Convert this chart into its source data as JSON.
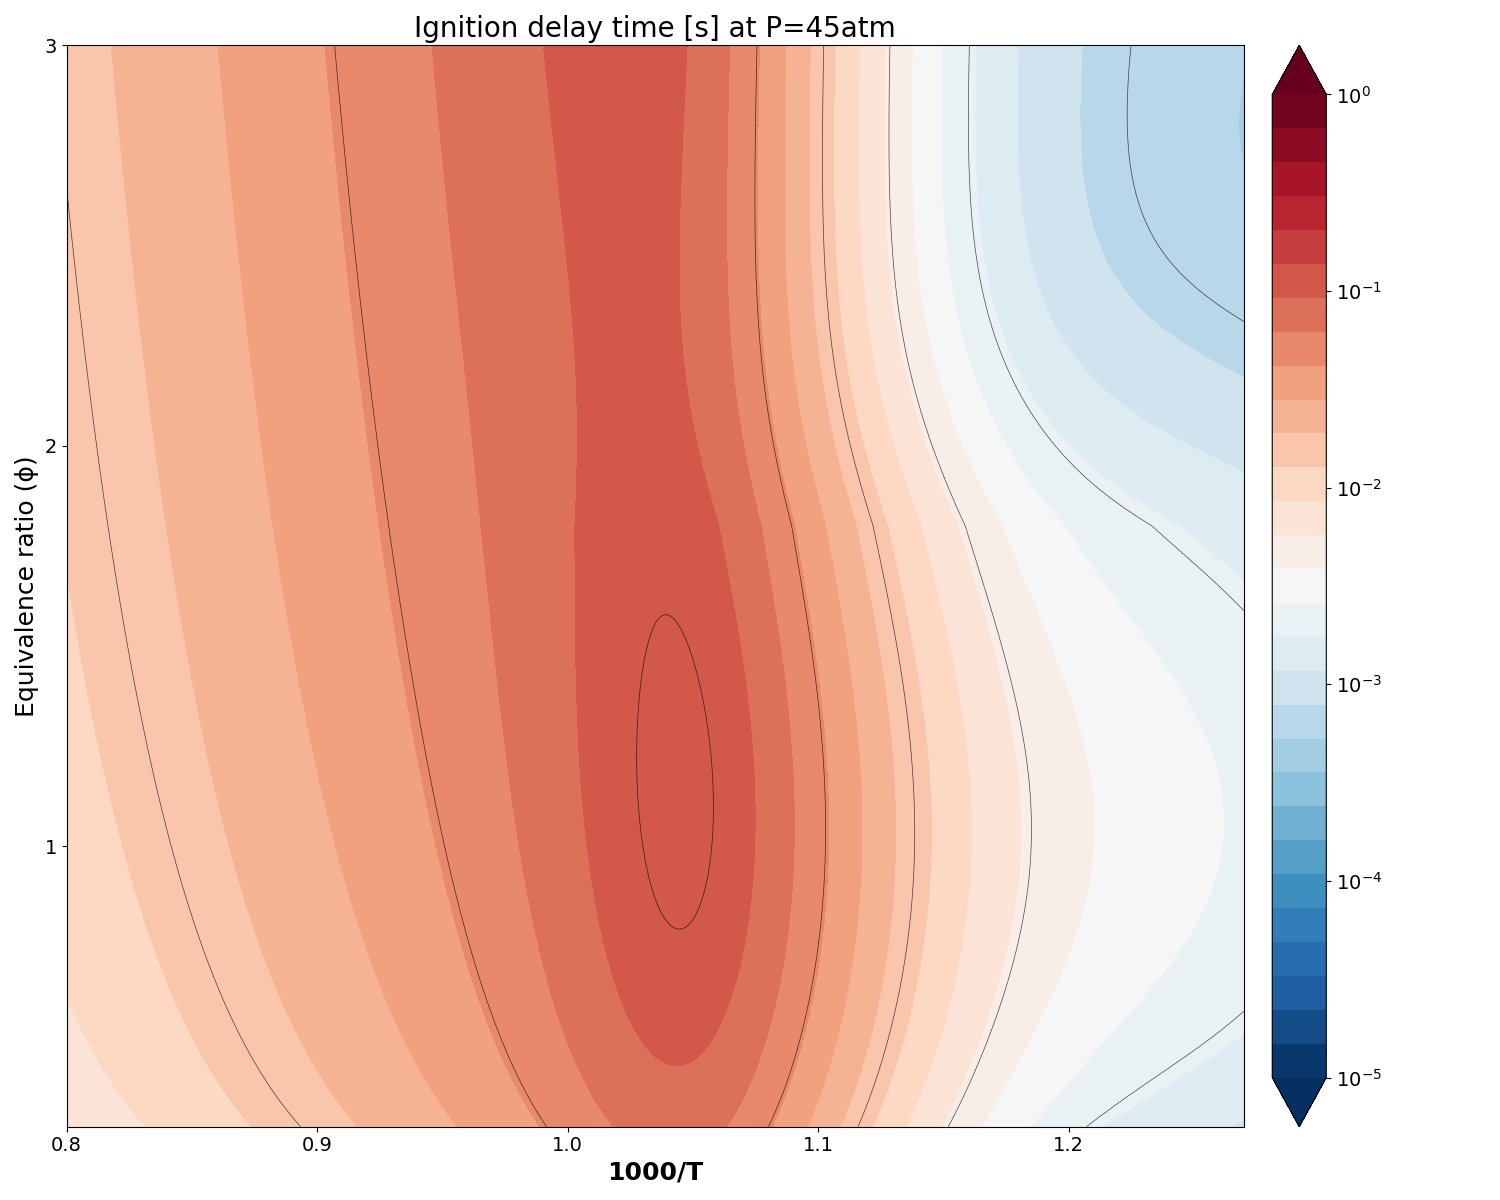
{
  "title": "Ignition delay time [s] at P=45atm",
  "xlabel": "1000/T",
  "ylabel": "Equivalence ratio (ϕ)",
  "x_min": 0.8,
  "x_max": 1.27,
  "y_min": 0.3,
  "y_max": 3.0,
  "cmap": "RdBu_r",
  "vmin_exp": -5,
  "vmax_exp": 0,
  "figsize": [
    15.0,
    12.0
  ],
  "dpi": 100,
  "xticks": [
    0.8,
    0.9,
    1.0,
    1.1,
    1.2
  ],
  "yticks": [
    1,
    2,
    3
  ],
  "colorbar_ticks": [
    1e-05,
    0.0001,
    0.001,
    0.01,
    0.1,
    1.0
  ],
  "title_fontsize": 20,
  "label_fontsize": 18,
  "tick_fontsize": 14,
  "n_grid": 300,
  "n_contourf_levels": 30,
  "n_contour_levels": 12
}
